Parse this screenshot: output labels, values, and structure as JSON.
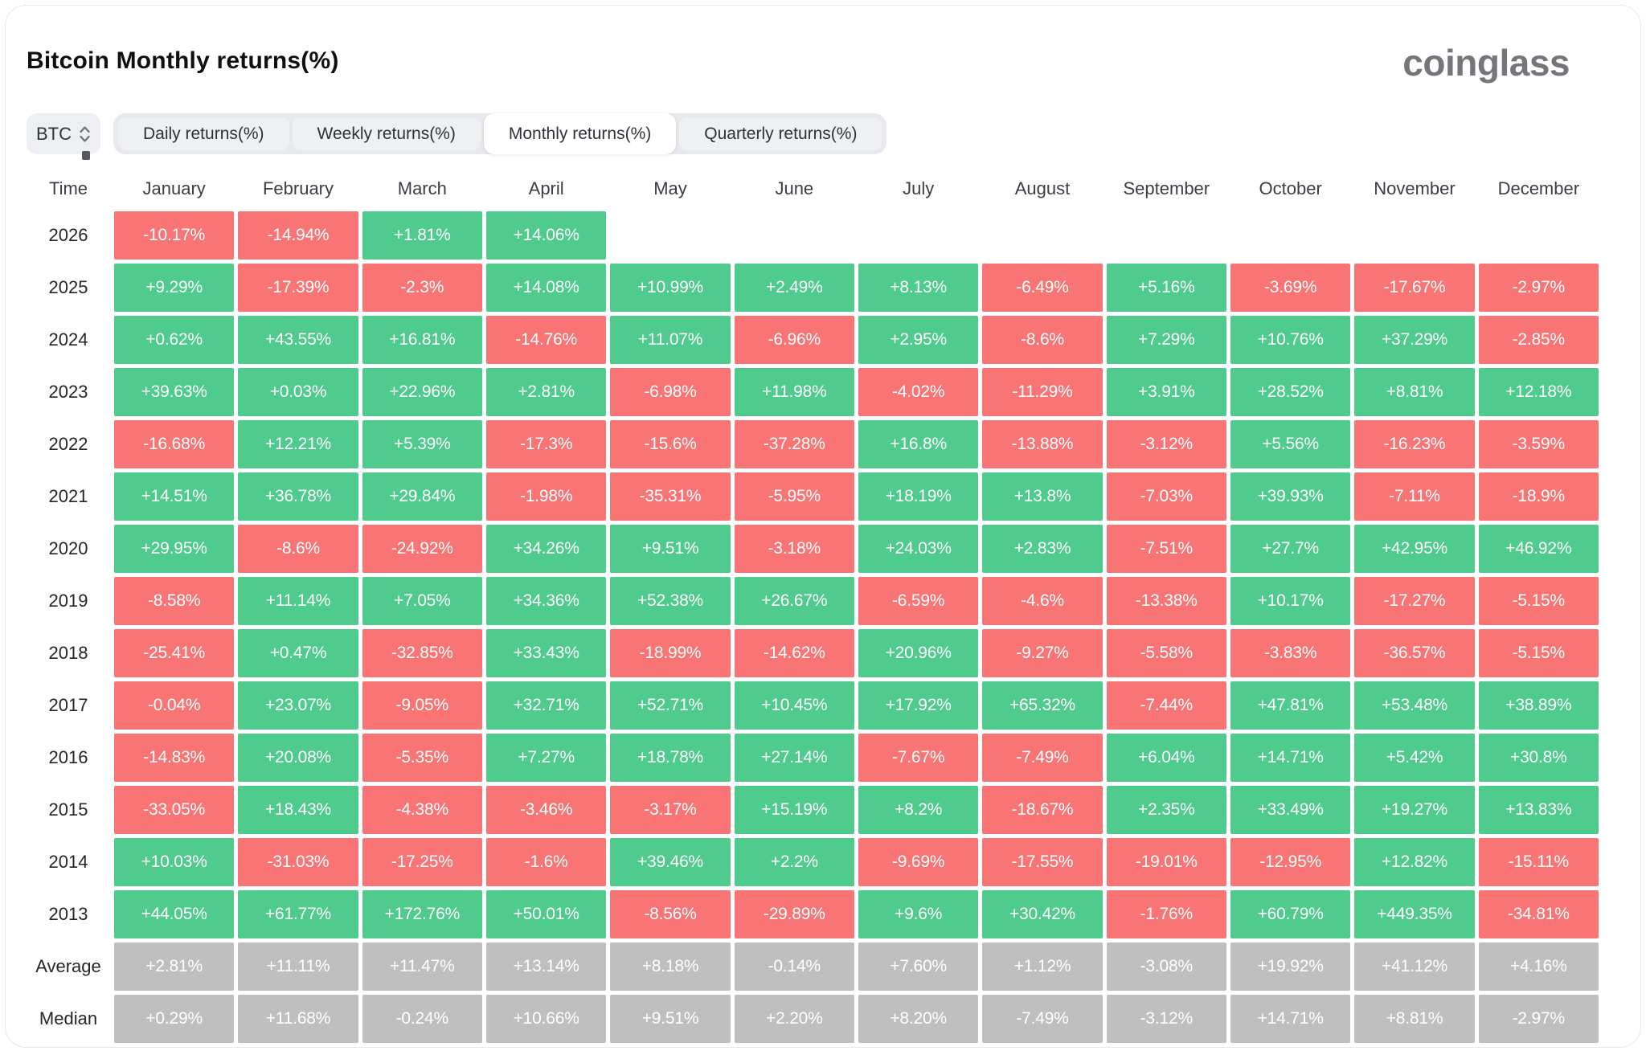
{
  "header": {
    "title": "Bitcoin Monthly returns(%)",
    "logo": "coinglass"
  },
  "controls": {
    "symbol_select": {
      "value": "BTC",
      "icon": "up-down-chevron-icon"
    },
    "tabs": [
      {
        "label": "Daily returns(%)",
        "active": false
      },
      {
        "label": "Weekly returns(%)",
        "active": false
      },
      {
        "label": "Monthly returns(%)",
        "active": true
      },
      {
        "label": "Quarterly returns(%)",
        "active": false
      }
    ]
  },
  "colors": {
    "positive": "#4fcb8d",
    "negative": "#f97474",
    "summary": "#bfbfbf",
    "cell_text": "#ffffff"
  },
  "table": {
    "corner_label": "Time",
    "months": [
      "January",
      "February",
      "March",
      "April",
      "May",
      "June",
      "July",
      "August",
      "September",
      "October",
      "November",
      "December"
    ],
    "rows": [
      {
        "label": "2026",
        "type": "year",
        "values": [
          "-10.17%",
          "-14.94%",
          "+1.81%",
          "+14.06%",
          "",
          "",
          "",
          "",
          "",
          "",
          "",
          ""
        ]
      },
      {
        "label": "2025",
        "type": "year",
        "values": [
          "+9.29%",
          "-17.39%",
          "-2.3%",
          "+14.08%",
          "+10.99%",
          "+2.49%",
          "+8.13%",
          "-6.49%",
          "+5.16%",
          "-3.69%",
          "-17.67%",
          "-2.97%"
        ]
      },
      {
        "label": "2024",
        "type": "year",
        "values": [
          "+0.62%",
          "+43.55%",
          "+16.81%",
          "-14.76%",
          "+11.07%",
          "-6.96%",
          "+2.95%",
          "-8.6%",
          "+7.29%",
          "+10.76%",
          "+37.29%",
          "-2.85%"
        ]
      },
      {
        "label": "2023",
        "type": "year",
        "values": [
          "+39.63%",
          "+0.03%",
          "+22.96%",
          "+2.81%",
          "-6.98%",
          "+11.98%",
          "-4.02%",
          "-11.29%",
          "+3.91%",
          "+28.52%",
          "+8.81%",
          "+12.18%"
        ]
      },
      {
        "label": "2022",
        "type": "year",
        "values": [
          "-16.68%",
          "+12.21%",
          "+5.39%",
          "-17.3%",
          "-15.6%",
          "-37.28%",
          "+16.8%",
          "-13.88%",
          "-3.12%",
          "+5.56%",
          "-16.23%",
          "-3.59%"
        ]
      },
      {
        "label": "2021",
        "type": "year",
        "values": [
          "+14.51%",
          "+36.78%",
          "+29.84%",
          "-1.98%",
          "-35.31%",
          "-5.95%",
          "+18.19%",
          "+13.8%",
          "-7.03%",
          "+39.93%",
          "-7.11%",
          "-18.9%"
        ]
      },
      {
        "label": "2020",
        "type": "year",
        "values": [
          "+29.95%",
          "-8.6%",
          "-24.92%",
          "+34.26%",
          "+9.51%",
          "-3.18%",
          "+24.03%",
          "+2.83%",
          "-7.51%",
          "+27.7%",
          "+42.95%",
          "+46.92%"
        ]
      },
      {
        "label": "2019",
        "type": "year",
        "values": [
          "-8.58%",
          "+11.14%",
          "+7.05%",
          "+34.36%",
          "+52.38%",
          "+26.67%",
          "-6.59%",
          "-4.6%",
          "-13.38%",
          "+10.17%",
          "-17.27%",
          "-5.15%"
        ]
      },
      {
        "label": "2018",
        "type": "year",
        "values": [
          "-25.41%",
          "+0.47%",
          "-32.85%",
          "+33.43%",
          "-18.99%",
          "-14.62%",
          "+20.96%",
          "-9.27%",
          "-5.58%",
          "-3.83%",
          "-36.57%",
          "-5.15%"
        ]
      },
      {
        "label": "2017",
        "type": "year",
        "values": [
          "-0.04%",
          "+23.07%",
          "-9.05%",
          "+32.71%",
          "+52.71%",
          "+10.45%",
          "+17.92%",
          "+65.32%",
          "-7.44%",
          "+47.81%",
          "+53.48%",
          "+38.89%"
        ]
      },
      {
        "label": "2016",
        "type": "year",
        "values": [
          "-14.83%",
          "+20.08%",
          "-5.35%",
          "+7.27%",
          "+18.78%",
          "+27.14%",
          "-7.67%",
          "-7.49%",
          "+6.04%",
          "+14.71%",
          "+5.42%",
          "+30.8%"
        ]
      },
      {
        "label": "2015",
        "type": "year",
        "values": [
          "-33.05%",
          "+18.43%",
          "-4.38%",
          "-3.46%",
          "-3.17%",
          "+15.19%",
          "+8.2%",
          "-18.67%",
          "+2.35%",
          "+33.49%",
          "+19.27%",
          "+13.83%"
        ]
      },
      {
        "label": "2014",
        "type": "year",
        "values": [
          "+10.03%",
          "-31.03%",
          "-17.25%",
          "-1.6%",
          "+39.46%",
          "+2.2%",
          "-9.69%",
          "-17.55%",
          "-19.01%",
          "-12.95%",
          "+12.82%",
          "-15.11%"
        ]
      },
      {
        "label": "2013",
        "type": "year",
        "values": [
          "+44.05%",
          "+61.77%",
          "+172.76%",
          "+50.01%",
          "-8.56%",
          "-29.89%",
          "+9.6%",
          "+30.42%",
          "-1.76%",
          "+60.79%",
          "+449.35%",
          "-34.81%"
        ]
      },
      {
        "label": "Average",
        "type": "summary",
        "values": [
          "+2.81%",
          "+11.11%",
          "+11.47%",
          "+13.14%",
          "+8.18%",
          "-0.14%",
          "+7.60%",
          "+1.12%",
          "-3.08%",
          "+19.92%",
          "+41.12%",
          "+4.16%"
        ]
      },
      {
        "label": "Median",
        "type": "summary",
        "values": [
          "+0.29%",
          "+11.68%",
          "-0.24%",
          "+10.66%",
          "+9.51%",
          "+2.20%",
          "+8.20%",
          "-7.49%",
          "-3.12%",
          "+14.71%",
          "+8.81%",
          "-2.97%"
        ]
      }
    ]
  }
}
